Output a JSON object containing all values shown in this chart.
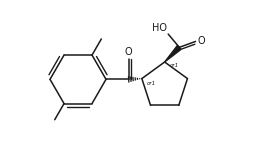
{
  "background_color": "#ffffff",
  "line_color": "#1a1a1a",
  "line_width": 1.1,
  "fig_width": 2.68,
  "fig_height": 1.56,
  "dpi": 100,
  "xlim": [
    0,
    10
  ],
  "ylim": [
    0,
    5.8
  ]
}
